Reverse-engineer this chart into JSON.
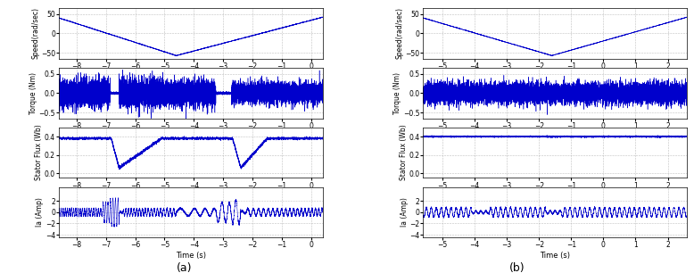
{
  "line_color": "#0000CC",
  "background_color": "#ffffff",
  "grid_color": "#b0b0b0",
  "grid_style": "--",
  "panel_a": {
    "xlim": [
      -8.6,
      0.4
    ],
    "xticks": [
      -8,
      -7,
      -6,
      -5,
      -4,
      -3,
      -2,
      -1,
      0
    ],
    "xlabel": "Time (s)",
    "label": "(a)",
    "speed": {
      "ylim": [
        -65,
        65
      ],
      "yticks": [
        -50,
        0,
        50
      ],
      "ylabel": "Speed(rad/sec)"
    },
    "torque": {
      "ylim": [
        -0.65,
        0.65
      ],
      "yticks": [
        -0.5,
        0,
        0.5
      ],
      "ylabel": "Torque (Nm)"
    },
    "flux": {
      "ylim": [
        -0.05,
        0.5
      ],
      "yticks": [
        0,
        0.2,
        0.4
      ],
      "ylabel": "Stator Flux (Wb)"
    },
    "current": {
      "ylim": [
        -4.5,
        4.5
      ],
      "yticks": [
        -4,
        -2,
        0,
        2
      ],
      "ylabel": "Ia (Amp)"
    }
  },
  "panel_b": {
    "xlim": [
      -5.6,
      2.6
    ],
    "xticks": [
      -5,
      -4,
      -3,
      -2,
      -1,
      0,
      1,
      2
    ],
    "xlabel": "Time (s)",
    "label": "(b)",
    "speed": {
      "ylim": [
        -65,
        65
      ],
      "yticks": [
        -50,
        0,
        50
      ],
      "ylabel": "Speed(rad/sec)"
    },
    "torque": {
      "ylim": [
        -0.65,
        0.65
      ],
      "yticks": [
        -0.5,
        0,
        0.5
      ],
      "ylabel": "Torque (Nm)"
    },
    "flux": {
      "ylim": [
        -0.05,
        0.5
      ],
      "yticks": [
        0,
        0.2,
        0.4
      ],
      "ylabel": "Stator Flux (Wb)"
    },
    "current": {
      "ylim": [
        -4.5,
        4.5
      ],
      "yticks": [
        -4,
        -2,
        0,
        2
      ],
      "ylabel": "Ia (Amp)"
    }
  }
}
